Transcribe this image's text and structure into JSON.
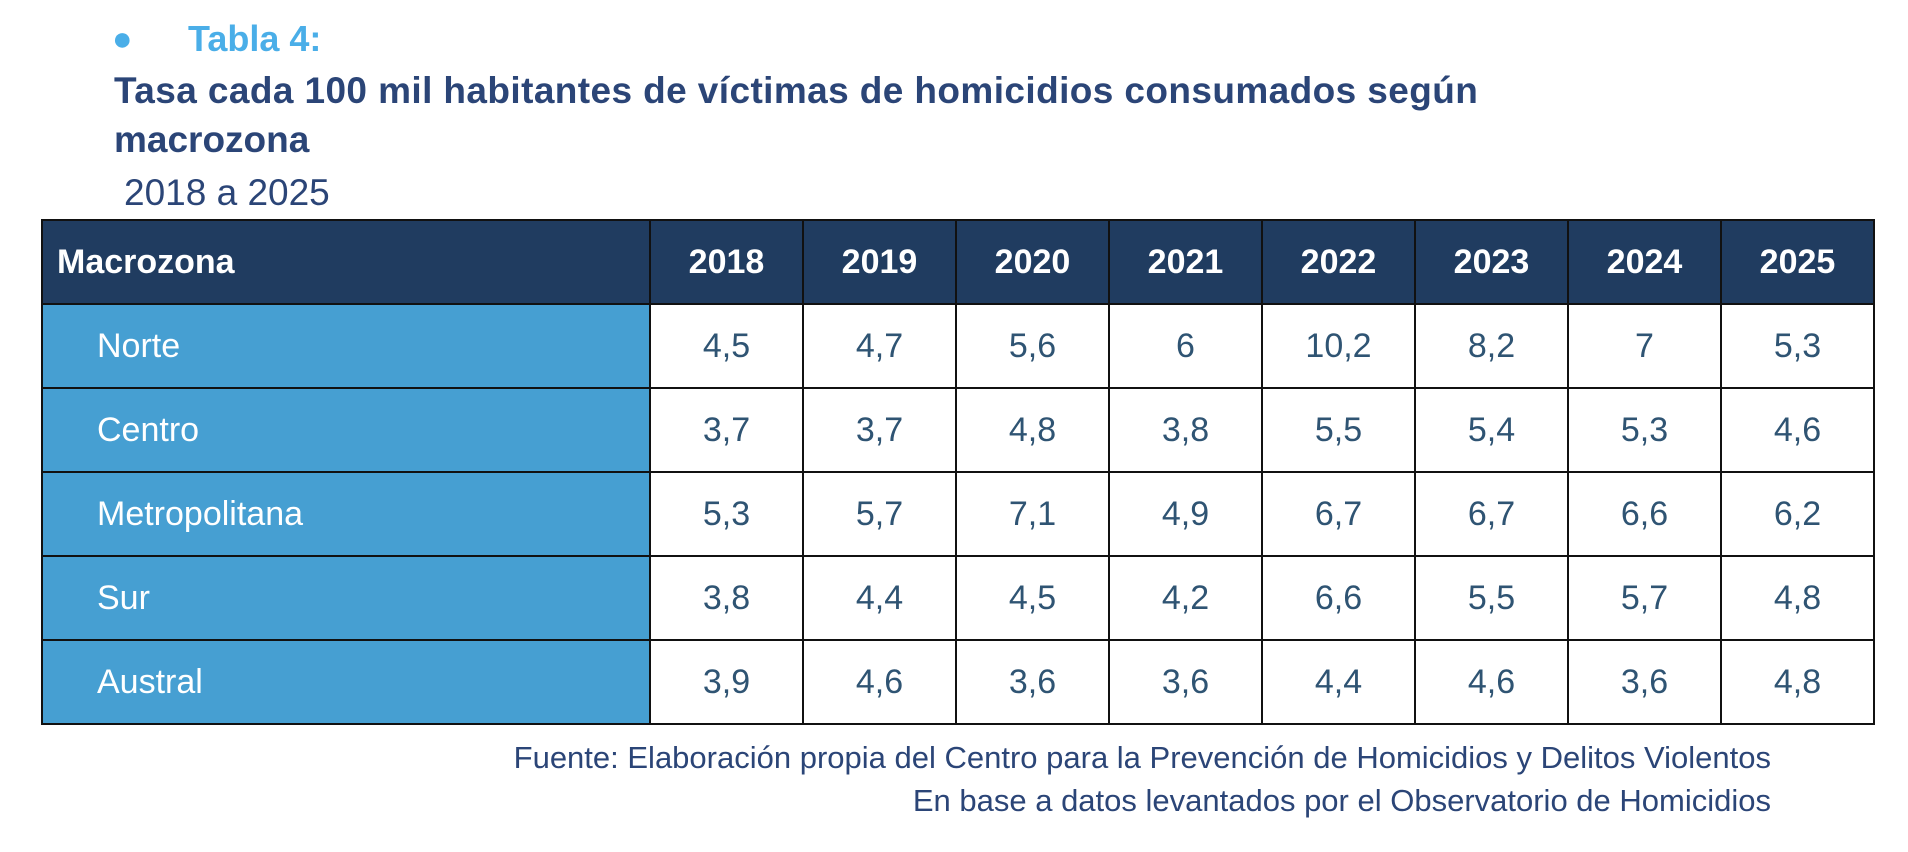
{
  "heading": {
    "label": "Tabla 4:",
    "title_line1": "Tasa cada 100 mil habitantes de víctimas de homicidios consumados según",
    "title_line2": "macrozona",
    "subtitle": "2018 a 2025"
  },
  "table": {
    "columns": [
      "Macrozona",
      "2018",
      "2019",
      "2020",
      "2021",
      "2022",
      "2023",
      "2024",
      "2025"
    ],
    "rows": [
      {
        "zone": "Norte",
        "values": [
          "4,5",
          "4,7",
          "5,6",
          "6",
          "10,2",
          "8,2",
          "7",
          "5,3"
        ]
      },
      {
        "zone": "Centro",
        "values": [
          "3,7",
          "3,7",
          "4,8",
          "3,8",
          "5,5",
          "5,4",
          "5,3",
          "4,6"
        ]
      },
      {
        "zone": "Metropolitana",
        "values": [
          "5,3",
          "5,7",
          "7,1",
          "4,9",
          "6,7",
          "6,7",
          "6,6",
          "6,2"
        ]
      },
      {
        "zone": "Sur",
        "values": [
          "3,8",
          "4,4",
          "4,5",
          "4,2",
          "6,6",
          "5,5",
          "5,7",
          "4,8"
        ]
      },
      {
        "zone": "Austral",
        "values": [
          "3,9",
          "4,6",
          "3,6",
          "3,6",
          "4,4",
          "4,6",
          "3,6",
          "4,8"
        ]
      }
    ]
  },
  "source": {
    "line1": "Fuente: Elaboración propia del Centro para la Prevención de Homicidios y Delitos Violentos",
    "line2": "En base a datos levantados por el Observatorio de Homicidios"
  },
  "colors": {
    "header_bg": "#203c60",
    "zone_bg": "#469fd2",
    "label_accent": "#4aaee8",
    "title_text": "#2b4577"
  }
}
